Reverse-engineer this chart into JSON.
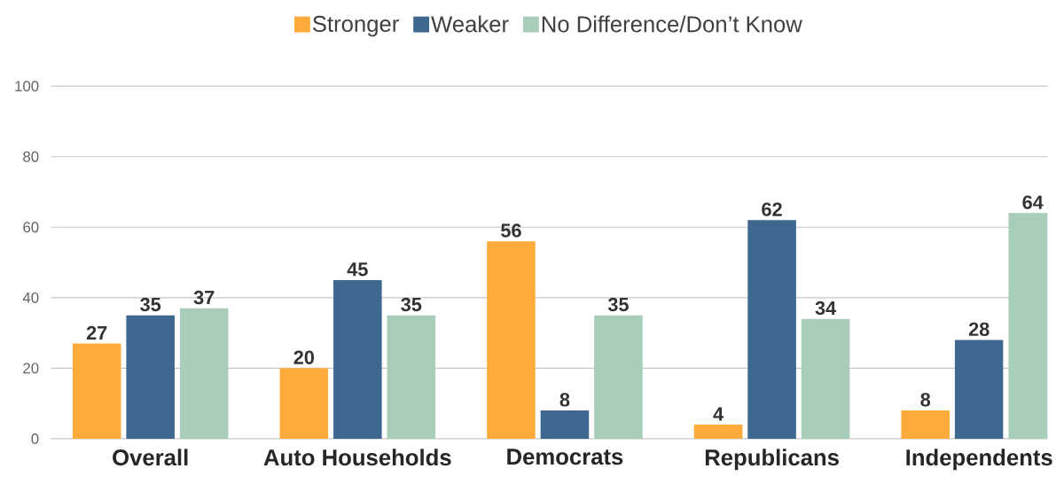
{
  "chart_data": {
    "type": "bar",
    "categories": [
      "Overall",
      "Auto Households",
      "Democrats",
      "Republicans",
      "Independents"
    ],
    "series": [
      {
        "name": "Stronger",
        "color": "#ffab3b",
        "values": [
          27,
          20,
          56,
          4,
          8
        ]
      },
      {
        "name": "Weaker",
        "color": "#3e6890",
        "values": [
          35,
          45,
          8,
          62,
          28
        ]
      },
      {
        "name": "No Difference/Don’t Know",
        "color": "#a8cdb8",
        "values": [
          37,
          35,
          35,
          34,
          64
        ]
      }
    ],
    "ylim": [
      0,
      100
    ],
    "yticks": [
      0,
      20,
      40,
      60,
      80,
      100
    ],
    "grid": "y",
    "legend": "top",
    "data_labels": true
  }
}
